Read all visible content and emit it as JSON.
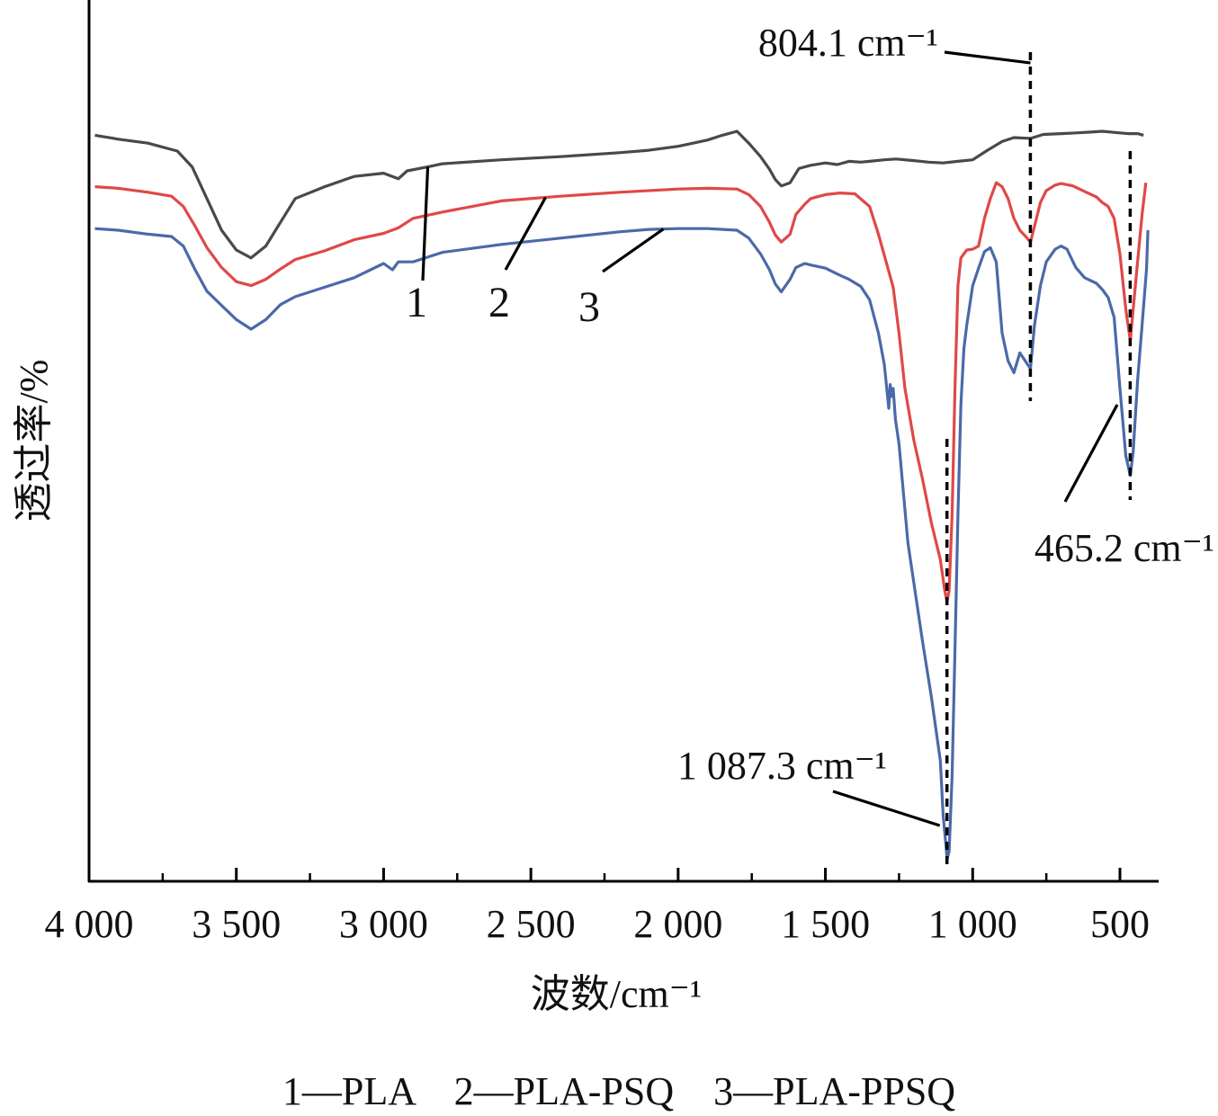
{
  "chart_data": {
    "type": "line",
    "xlabel": "波数/cm⁻¹",
    "ylabel": "透过率/%",
    "xlim": [
      4000,
      400
    ],
    "x_reversed": true,
    "y_ticks_shown": false,
    "xticks": [
      {
        "value": 4000,
        "label": "4 000"
      },
      {
        "value": 3500,
        "label": "3 500"
      },
      {
        "value": 3000,
        "label": "3 000"
      },
      {
        "value": 2500,
        "label": "2 500"
      },
      {
        "value": 2000,
        "label": "2 000"
      },
      {
        "value": 1500,
        "label": "1 500"
      },
      {
        "value": 1000,
        "label": "1 000"
      },
      {
        "value": 500,
        "label": "500"
      }
    ],
    "minor_ticks": [
      3750,
      3250,
      2750,
      2250,
      1750,
      1250,
      750
    ],
    "legend_text": "1—PLA　2—PLA-PSQ　3—PLA-PPSQ",
    "series": [
      {
        "name": "PLA",
        "label": "1",
        "color": "#4d4747",
        "points": [
          [
            3980,
            92
          ],
          [
            3900,
            91.5
          ],
          [
            3800,
            91
          ],
          [
            3700,
            90
          ],
          [
            3650,
            88
          ],
          [
            3600,
            84
          ],
          [
            3550,
            80
          ],
          [
            3500,
            77.5
          ],
          [
            3450,
            76.5
          ],
          [
            3400,
            78
          ],
          [
            3350,
            81
          ],
          [
            3300,
            84
          ],
          [
            3200,
            85.5
          ],
          [
            3100,
            86.8
          ],
          [
            3000,
            87.2
          ],
          [
            2950,
            86.5
          ],
          [
            2920,
            87.5
          ],
          [
            2850,
            88
          ],
          [
            2800,
            88.4
          ],
          [
            2600,
            88.9
          ],
          [
            2400,
            89.3
          ],
          [
            2200,
            89.8
          ],
          [
            2100,
            90.1
          ],
          [
            2000,
            90.6
          ],
          [
            1900,
            91.4
          ],
          [
            1850,
            92
          ],
          [
            1800,
            92.5
          ],
          [
            1760,
            91
          ],
          [
            1720,
            89.3
          ],
          [
            1690,
            87.7
          ],
          [
            1670,
            86.4
          ],
          [
            1650,
            85.6
          ],
          [
            1620,
            86
          ],
          [
            1590,
            87.8
          ],
          [
            1550,
            88.2
          ],
          [
            1500,
            88.5
          ],
          [
            1460,
            88.3
          ],
          [
            1420,
            88.7
          ],
          [
            1380,
            88.6
          ],
          [
            1350,
            88.7
          ],
          [
            1300,
            88.9
          ],
          [
            1260,
            89
          ],
          [
            1200,
            88.8
          ],
          [
            1150,
            88.6
          ],
          [
            1100,
            88.5
          ],
          [
            1050,
            88.7
          ],
          [
            1000,
            88.9
          ],
          [
            950,
            90.1
          ],
          [
            900,
            91.2
          ],
          [
            860,
            91.7
          ],
          [
            804,
            91.6
          ],
          [
            760,
            92.1
          ],
          [
            700,
            92.2
          ],
          [
            650,
            92.3
          ],
          [
            600,
            92.4
          ],
          [
            560,
            92.5
          ],
          [
            500,
            92.3
          ],
          [
            470,
            92.2
          ],
          [
            440,
            92.2
          ],
          [
            420,
            92
          ]
        ]
      },
      {
        "name": "PLA-PSQ",
        "label": "2",
        "color": "#e04848",
        "points": [
          [
            3980,
            85.5
          ],
          [
            3900,
            85.3
          ],
          [
            3800,
            84.8
          ],
          [
            3720,
            84.3
          ],
          [
            3680,
            83
          ],
          [
            3640,
            80.5
          ],
          [
            3600,
            77.8
          ],
          [
            3550,
            75.3
          ],
          [
            3500,
            73.5
          ],
          [
            3450,
            73
          ],
          [
            3400,
            73.8
          ],
          [
            3350,
            75.1
          ],
          [
            3300,
            76.3
          ],
          [
            3200,
            77.4
          ],
          [
            3100,
            78.8
          ],
          [
            3000,
            79.6
          ],
          [
            2950,
            80.3
          ],
          [
            2900,
            81.5
          ],
          [
            2800,
            82.3
          ],
          [
            2600,
            83.7
          ],
          [
            2400,
            84.3
          ],
          [
            2200,
            84.8
          ],
          [
            2000,
            85.2
          ],
          [
            1900,
            85.3
          ],
          [
            1800,
            85.2
          ],
          [
            1760,
            84.5
          ],
          [
            1720,
            83
          ],
          [
            1690,
            81
          ],
          [
            1670,
            79.4
          ],
          [
            1650,
            78.5
          ],
          [
            1620,
            79.5
          ],
          [
            1600,
            82
          ],
          [
            1570,
            83.3
          ],
          [
            1550,
            84
          ],
          [
            1500,
            84.5
          ],
          [
            1450,
            84.7
          ],
          [
            1400,
            84.6
          ],
          [
            1350,
            83
          ],
          [
            1320,
            79.5
          ],
          [
            1290,
            75.5
          ],
          [
            1270,
            72.8
          ],
          [
            1250,
            67
          ],
          [
            1230,
            60
          ],
          [
            1200,
            53.5
          ],
          [
            1170,
            48.5
          ],
          [
            1140,
            43
          ],
          [
            1110,
            38.4
          ],
          [
            1095,
            34.5
          ],
          [
            1087,
            33
          ],
          [
            1080,
            34.5
          ],
          [
            1070,
            44
          ],
          [
            1060,
            60
          ],
          [
            1050,
            73
          ],
          [
            1040,
            76.5
          ],
          [
            1020,
            77.5
          ],
          [
            1000,
            77.6
          ],
          [
            980,
            78
          ],
          [
            960,
            81.5
          ],
          [
            940,
            84
          ],
          [
            920,
            86
          ],
          [
            900,
            85.5
          ],
          [
            880,
            84
          ],
          [
            860,
            81.5
          ],
          [
            840,
            80
          ],
          [
            820,
            79.2
          ],
          [
            804,
            78.5
          ],
          [
            790,
            80.5
          ],
          [
            770,
            83.5
          ],
          [
            750,
            85
          ],
          [
            720,
            85.7
          ],
          [
            700,
            85.9
          ],
          [
            660,
            85.6
          ],
          [
            620,
            84.9
          ],
          [
            580,
            84.2
          ],
          [
            560,
            83.5
          ],
          [
            540,
            83
          ],
          [
            520,
            81.5
          ],
          [
            500,
            77
          ],
          [
            480,
            70
          ],
          [
            465,
            66
          ],
          [
            455,
            70
          ],
          [
            440,
            76
          ],
          [
            425,
            82
          ],
          [
            412,
            86
          ]
        ]
      },
      {
        "name": "PLA-PPSQ",
        "label": "3",
        "color": "#4a6aa8",
        "points": [
          [
            3980,
            80.2
          ],
          [
            3900,
            80
          ],
          [
            3800,
            79.5
          ],
          [
            3720,
            79.2
          ],
          [
            3680,
            78
          ],
          [
            3640,
            75
          ],
          [
            3600,
            72.3
          ],
          [
            3550,
            70.5
          ],
          [
            3500,
            68.7
          ],
          [
            3450,
            67.5
          ],
          [
            3400,
            68.7
          ],
          [
            3350,
            70.6
          ],
          [
            3300,
            71.6
          ],
          [
            3200,
            72.8
          ],
          [
            3100,
            74
          ],
          [
            3000,
            75.8
          ],
          [
            2970,
            75
          ],
          [
            2950,
            76
          ],
          [
            2900,
            76
          ],
          [
            2850,
            76.6
          ],
          [
            2800,
            77.2
          ],
          [
            2600,
            78.2
          ],
          [
            2400,
            79
          ],
          [
            2200,
            79.8
          ],
          [
            2100,
            80.1
          ],
          [
            2000,
            80.2
          ],
          [
            1900,
            80.2
          ],
          [
            1800,
            80
          ],
          [
            1760,
            79
          ],
          [
            1720,
            77
          ],
          [
            1690,
            75
          ],
          [
            1670,
            73.2
          ],
          [
            1650,
            72.2
          ],
          [
            1620,
            73.8
          ],
          [
            1600,
            75.3
          ],
          [
            1570,
            75.8
          ],
          [
            1550,
            75.6
          ],
          [
            1500,
            75.2
          ],
          [
            1450,
            74.3
          ],
          [
            1420,
            73.8
          ],
          [
            1380,
            72.9
          ],
          [
            1350,
            71.2
          ],
          [
            1320,
            67
          ],
          [
            1300,
            63
          ],
          [
            1285,
            57.5
          ],
          [
            1280,
            60.5
          ],
          [
            1275,
            59
          ],
          [
            1270,
            60
          ],
          [
            1262,
            56
          ],
          [
            1250,
            53
          ],
          [
            1220,
            40.5
          ],
          [
            1200,
            35.5
          ],
          [
            1170,
            28
          ],
          [
            1140,
            21
          ],
          [
            1110,
            13
          ],
          [
            1100,
            6
          ],
          [
            1090,
            2
          ],
          [
            1087,
            0.5
          ],
          [
            1080,
            1.5
          ],
          [
            1070,
            11
          ],
          [
            1060,
            27
          ],
          [
            1050,
            44
          ],
          [
            1040,
            58
          ],
          [
            1030,
            65
          ],
          [
            1020,
            68
          ],
          [
            1000,
            73
          ],
          [
            980,
            75.2
          ],
          [
            960,
            77.3
          ],
          [
            940,
            77.8
          ],
          [
            920,
            76
          ],
          [
            900,
            67
          ],
          [
            880,
            63.5
          ],
          [
            860,
            62
          ],
          [
            840,
            64.5
          ],
          [
            804,
            62.5
          ],
          [
            790,
            68
          ],
          [
            770,
            73
          ],
          [
            750,
            76
          ],
          [
            720,
            77.6
          ],
          [
            700,
            78
          ],
          [
            680,
            77.6
          ],
          [
            650,
            75.3
          ],
          [
            620,
            74
          ],
          [
            580,
            73.3
          ],
          [
            560,
            72.5
          ],
          [
            540,
            71.5
          ],
          [
            520,
            69
          ],
          [
            500,
            60
          ],
          [
            480,
            51.5
          ],
          [
            465,
            49
          ],
          [
            455,
            52
          ],
          [
            440,
            61
          ],
          [
            425,
            68
          ],
          [
            410,
            75
          ],
          [
            405,
            80
          ]
        ]
      }
    ],
    "curve_label_leaders": [
      {
        "label": "1",
        "series": "PLA",
        "x": 2850
      },
      {
        "label": "2",
        "series": "PLA-PSQ",
        "x": 2450
      },
      {
        "label": "3",
        "series": "PLA-PPSQ",
        "x": 2050
      }
    ],
    "peak_annotations": [
      {
        "text": "804.1 cm⁻¹",
        "x": 804.1
      },
      {
        "text": "465.2 cm⁻¹",
        "x": 465.2
      },
      {
        "text": "1 087.3 cm⁻¹",
        "x": 1087.3
      }
    ]
  }
}
